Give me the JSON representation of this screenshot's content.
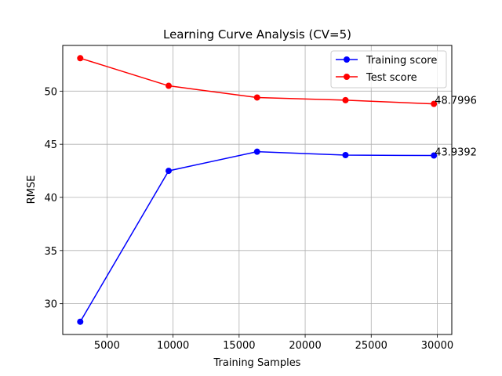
{
  "chart_data": {
    "type": "line",
    "title": "Learning Curve Analysis (CV=5)",
    "xlabel": "Training Samples",
    "ylabel": "RMSE",
    "xlim": [
      1650,
      31100
    ],
    "ylim": [
      27.1,
      54.3
    ],
    "xticks": [
      5000,
      10000,
      15000,
      20000,
      25000,
      30000
    ],
    "yticks": [
      30,
      35,
      40,
      45,
      50
    ],
    "grid": true,
    "legend_position": "top-right",
    "x": [
      2974,
      9667,
      16360,
      23053,
      29746
    ],
    "series": [
      {
        "name": "Training score",
        "color": "#0000ff",
        "values": [
          28.3,
          42.5,
          44.3,
          43.98,
          43.9392
        ],
        "end_label": "43.9392"
      },
      {
        "name": "Test score",
        "color": "#ff0000",
        "values": [
          53.1,
          50.5,
          49.4,
          49.15,
          48.7996
        ],
        "end_label": "48.7996"
      }
    ]
  }
}
